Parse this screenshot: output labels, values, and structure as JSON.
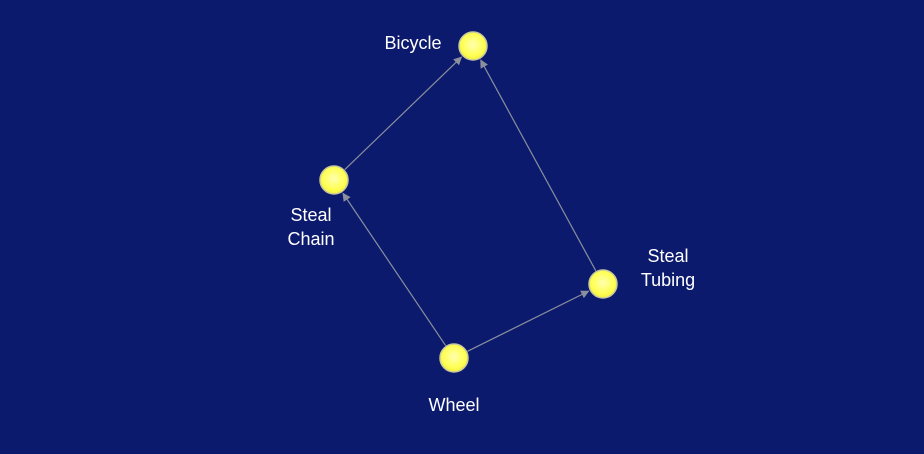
{
  "colors": {
    "background": "#0c1a6e",
    "node_fill": "#ffff66",
    "node_stroke": "#c9c9a0",
    "edge": "#8a8f9e",
    "label": "#ffffff"
  },
  "nodes": [
    {
      "id": "bicycle",
      "label_lines": [
        "Bicycle"
      ]
    },
    {
      "id": "steal-chain",
      "label_lines": [
        "Steal",
        "Chain"
      ]
    },
    {
      "id": "steal-tubing",
      "label_lines": [
        "Steal",
        "Tubing"
      ]
    },
    {
      "id": "wheel",
      "label_lines": [
        "Wheel"
      ]
    }
  ],
  "edges": [
    {
      "from": "steal-chain",
      "to": "bicycle"
    },
    {
      "from": "steal-tubing",
      "to": "bicycle"
    },
    {
      "from": "wheel",
      "to": "steal-chain"
    },
    {
      "from": "wheel",
      "to": "steal-tubing"
    }
  ]
}
